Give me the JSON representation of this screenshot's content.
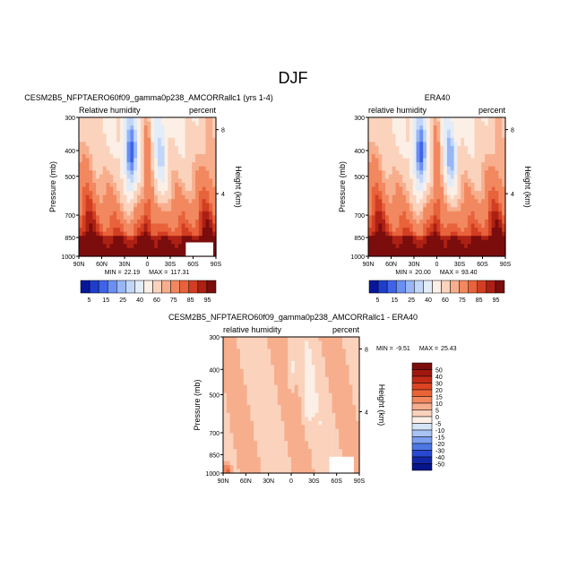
{
  "season": "DJF",
  "chart_data": [
    {
      "type": "heatmap",
      "title": "CESM2B5_NFPTAERO60f09_gamma0p238_AMCORRallc1 (yrs 1-4)",
      "variable": "Relative humidity",
      "units": "percent",
      "ylabel": "Pressure (mb)",
      "ylabel_right": "Height (km)",
      "xticks": [
        "90N",
        "60N",
        "30N",
        "0",
        "30S",
        "60S",
        "90S"
      ],
      "yticks": [
        "300",
        "400",
        "500",
        "700",
        "850",
        "1000"
      ],
      "height_ticks": [
        "8",
        "4"
      ],
      "min_label": "MIN =",
      "min": "22.19",
      "max_label": "MAX =",
      "max": "117.31",
      "colorbar_labels": [
        "5",
        "15",
        "25",
        "40",
        "60",
        "75",
        "85",
        "95"
      ],
      "colorbar_colors": [
        "#08179a",
        "#1f3dcc",
        "#3f63e8",
        "#6a8ff2",
        "#98b6f6",
        "#c2d6f8",
        "#e3ecf9",
        "#fcefe6",
        "#fbd2bc",
        "#f7ae8d",
        "#f2885f",
        "#e8623b",
        "#d23e22",
        "#ad2014",
        "#7b0d0d"
      ]
    },
    {
      "type": "heatmap",
      "title": "ERA40",
      "variable": "relative humidity",
      "units": "percent",
      "ylabel": "Pressure (mb)",
      "ylabel_right": "Height (km)",
      "xticks": [
        "90N",
        "60N",
        "30N",
        "0",
        "30S",
        "60S",
        "90S"
      ],
      "yticks": [
        "300",
        "400",
        "500",
        "700",
        "850",
        "1000"
      ],
      "height_ticks": [
        "8",
        "4"
      ],
      "min_label": "MIN =",
      "min": "20.00",
      "max_label": "MAX =",
      "max": "93.40",
      "colorbar_labels": [
        "5",
        "15",
        "25",
        "40",
        "60",
        "75",
        "85",
        "95"
      ],
      "colorbar_colors": [
        "#08179a",
        "#1f3dcc",
        "#3f63e8",
        "#6a8ff2",
        "#98b6f6",
        "#c2d6f8",
        "#e3ecf9",
        "#fcefe6",
        "#fbd2bc",
        "#f7ae8d",
        "#f2885f",
        "#e8623b",
        "#d23e22",
        "#ad2014",
        "#7b0d0d"
      ]
    },
    {
      "type": "heatmap",
      "title": "CESM2B5_NFPTAERO60f09_gamma0p238_AMCORRallc1 - ERA40",
      "variable": "relative humidity",
      "units": "percent",
      "ylabel": "Pressure (mb)",
      "ylabel_right": "Height (km)",
      "xticks": [
        "90N",
        "60N",
        "30N",
        "0",
        "30S",
        "60S",
        "90S"
      ],
      "yticks": [
        "300",
        "400",
        "500",
        "700",
        "850",
        "1000"
      ],
      "height_ticks": [
        "8",
        "4"
      ],
      "min_label": "MIN =",
      "min": "-9.51",
      "max_label": "MAX =",
      "max": "25.43",
      "colorbar_labels": [
        "50",
        "40",
        "30",
        "20",
        "15",
        "10",
        "5",
        "0",
        "-5",
        "-10",
        "-15",
        "-20",
        "-30",
        "-40",
        "-50"
      ],
      "colorbar_colors": [
        "#7b0d0d",
        "#a11710",
        "#c22a18",
        "#dc4424",
        "#ea6336",
        "#f2885f",
        "#f7ae8d",
        "#fbd2bc",
        "#fcefe6",
        "#d6e4f8",
        "#a9c3f3",
        "#7c9ff0",
        "#4f76e6",
        "#2848cf",
        "#1227a8",
        "#06158a"
      ]
    }
  ]
}
